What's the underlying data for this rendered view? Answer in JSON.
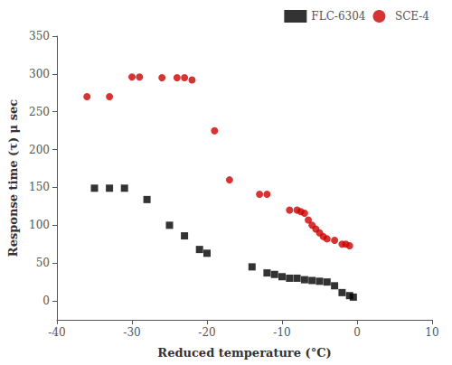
{
  "chart_data": {
    "type": "scatter",
    "xlabel": "Reduced temperature (°C)",
    "ylabel": "Response time (τ) μ sec",
    "series": [
      {
        "name": "FLC-6304",
        "color": "#000000",
        "marker": "square",
        "x": [
          -35,
          -33,
          -31,
          -28,
          -25,
          -23,
          -21,
          -20,
          -14,
          -12,
          -11,
          -10,
          -9,
          -8,
          -7,
          -6,
          -5,
          -4,
          -3,
          -2,
          -1,
          -0.5
        ],
        "values": [
          149,
          149,
          149,
          134,
          100,
          86,
          68,
          63,
          45,
          37,
          35,
          32,
          30,
          30,
          28,
          27,
          26,
          25,
          20,
          11,
          7,
          5
        ]
      },
      {
        "name": "SCE-4",
        "color": "#cc0000",
        "marker": "circle",
        "x": [
          -36,
          -33,
          -30,
          -29,
          -26,
          -24,
          -23,
          -22,
          -19,
          -17,
          -13,
          -12,
          -9,
          -8,
          -7.5,
          -7,
          -6.5,
          -6,
          -5.5,
          -5,
          -4.5,
          -4,
          -3,
          -2,
          -1.5,
          -1
        ],
        "values": [
          270,
          270,
          296,
          296,
          295,
          295,
          295,
          292,
          225,
          160,
          141,
          141,
          120,
          120,
          118,
          116,
          107,
          100,
          95,
          90,
          85,
          82,
          80,
          75,
          75,
          73
        ]
      }
    ],
    "xlim": [
      -40,
      10
    ],
    "ylim": [
      -25,
      350
    ],
    "xticks": [
      -40,
      -30,
      -20,
      -10,
      0,
      10
    ],
    "yticks": [
      0,
      50,
      100,
      150,
      200,
      250,
      300,
      350
    ],
    "grid": false,
    "legend": "upper right"
  }
}
